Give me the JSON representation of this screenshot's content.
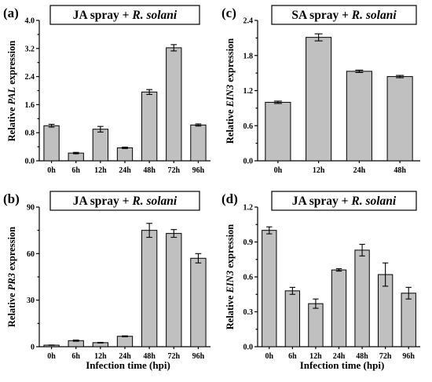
{
  "chart_data": [
    {
      "panel": "(a)",
      "type": "bar",
      "title_plain": "JA spray + ",
      "title_italic": "R. solani",
      "ylabel_pre": "Relative ",
      "ylabel_gene": "PAL",
      "ylabel_post": " expression",
      "xlabel": "",
      "categories": [
        "0h",
        "6h",
        "12h",
        "24h",
        "48h",
        "72h",
        "96h"
      ],
      "values": [
        1.0,
        0.22,
        0.9,
        0.37,
        1.96,
        3.22,
        1.02
      ],
      "errors": [
        0.04,
        0.02,
        0.08,
        0.02,
        0.07,
        0.09,
        0.03
      ],
      "ylim": [
        0,
        4.0
      ],
      "yticks": [
        "0.0",
        "0.8",
        "1.6",
        "2.4",
        "3.2",
        "4.0"
      ],
      "yminor": 0.4
    },
    {
      "panel": "(c)",
      "type": "bar",
      "title_plain": "SA spray + ",
      "title_italic": "R. solani",
      "ylabel_pre": "Relative ",
      "ylabel_gene": "EIN3",
      "ylabel_post": " expression",
      "xlabel": "",
      "categories": [
        "0h",
        "12h",
        "24h",
        "48h"
      ],
      "values": [
        1.0,
        2.11,
        1.53,
        1.44
      ],
      "errors": [
        0.02,
        0.06,
        0.02,
        0.02
      ],
      "ylim": [
        0,
        2.4
      ],
      "yticks": [
        "0.0",
        "0.6",
        "1.2",
        "1.8",
        "2.4"
      ],
      "yminor": 0.3
    },
    {
      "panel": "(b)",
      "type": "bar",
      "title_plain": "JA spray + ",
      "title_italic": "R. solani",
      "ylabel_pre": "Relative ",
      "ylabel_gene": "PR3",
      "ylabel_post": " expression",
      "xlabel": "Infection time (hpi)",
      "categories": [
        "0h",
        "6h",
        "12h",
        "24h",
        "48h",
        "72h",
        "96h"
      ],
      "values": [
        1.0,
        3.9,
        2.6,
        6.7,
        75.0,
        73.0,
        57.0
      ],
      "errors": [
        0.1,
        0.4,
        0.2,
        0.3,
        4.5,
        2.5,
        3.0
      ],
      "ylim": [
        0,
        90
      ],
      "yticks": [
        "0",
        "30",
        "60",
        "90"
      ],
      "yminor": 15
    },
    {
      "panel": "(d)",
      "type": "bar",
      "title_plain": "JA spray + ",
      "title_italic": "R. solani",
      "ylabel_pre": "Relative ",
      "ylabel_gene": "EIN3",
      "ylabel_post": " expression",
      "xlabel": "Infection time (hpi)",
      "categories": [
        "0h",
        "6h",
        "12h",
        "24h",
        "48h",
        "72h",
        "96h"
      ],
      "values": [
        1.0,
        0.48,
        0.37,
        0.66,
        0.83,
        0.62,
        0.46
      ],
      "errors": [
        0.03,
        0.03,
        0.04,
        0.01,
        0.05,
        0.1,
        0.05
      ],
      "ylim": [
        0,
        1.2
      ],
      "yticks": [
        "0.0",
        "0.3",
        "0.6",
        "0.9",
        "1.2"
      ],
      "yminor": 0.15
    }
  ]
}
